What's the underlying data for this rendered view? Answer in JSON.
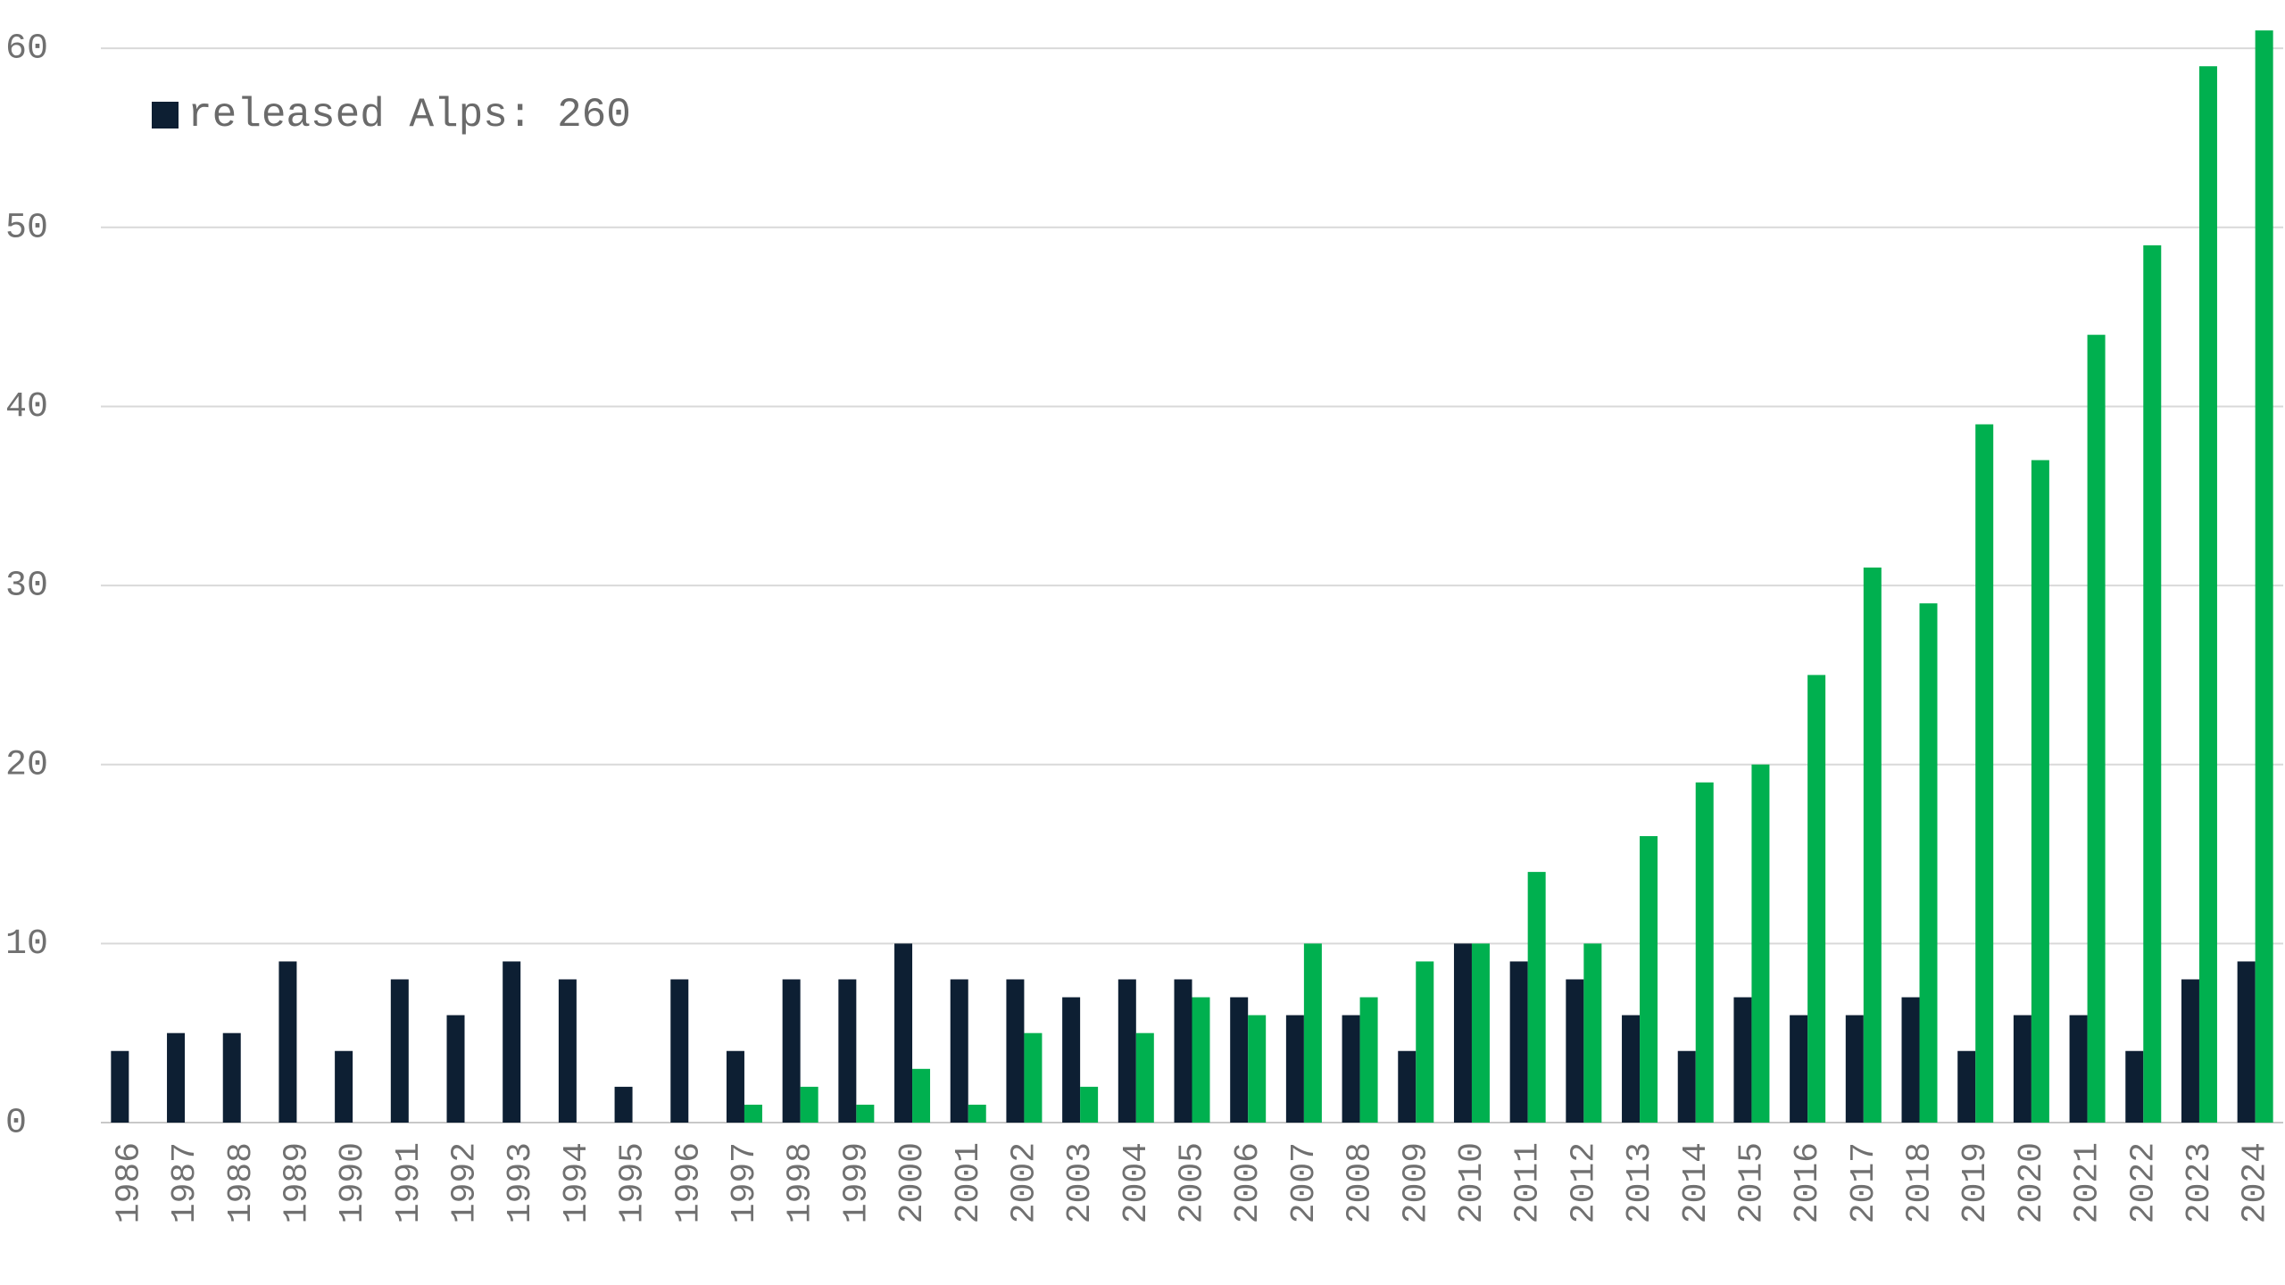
{
  "chart_data": {
    "type": "bar",
    "categories": [
      "1986",
      "1987",
      "1988",
      "1989",
      "1990",
      "1991",
      "1992",
      "1993",
      "1994",
      "1995",
      "1996",
      "1997",
      "1998",
      "1999",
      "2000",
      "2001",
      "2002",
      "2003",
      "2004",
      "2005",
      "2006",
      "2007",
      "2008",
      "2009",
      "2010",
      "2011",
      "2012",
      "2013",
      "2014",
      "2015",
      "2016",
      "2017",
      "2018",
      "2019",
      "2020",
      "2021",
      "2022",
      "2023",
      "2024"
    ],
    "series": [
      {
        "name": "released Alps: 260",
        "color": "#0d1f33",
        "values": [
          4,
          5,
          5,
          9,
          4,
          8,
          6,
          9,
          8,
          2,
          8,
          4,
          8,
          8,
          10,
          8,
          8,
          7,
          8,
          8,
          7,
          6,
          6,
          4,
          10,
          9,
          8,
          6,
          4,
          7,
          6,
          6,
          7,
          4,
          6,
          6,
          4,
          8,
          9
        ]
      },
      {
        "color": "#00b04f",
        "values": [
          0,
          0,
          0,
          0,
          0,
          0,
          0,
          0,
          0,
          0,
          0,
          1,
          2,
          1,
          3,
          1,
          5,
          2,
          5,
          7,
          6,
          10,
          7,
          9,
          10,
          14,
          10,
          16,
          19,
          20,
          25,
          31,
          29,
          39,
          37,
          44,
          49,
          59,
          61
        ]
      }
    ],
    "ylim": [
      0,
      62.7
    ],
    "yticks": [
      0,
      10,
      20,
      30,
      40,
      50,
      60
    ],
    "grid": true,
    "legend": "upper left"
  }
}
